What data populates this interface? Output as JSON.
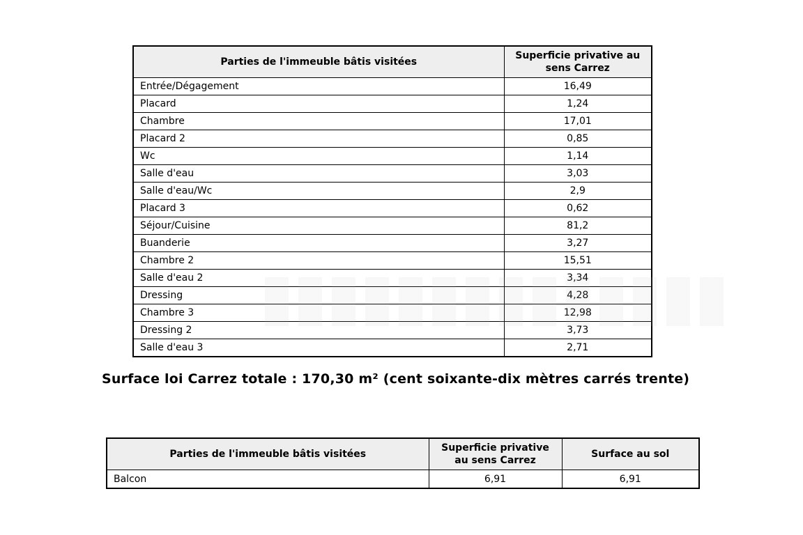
{
  "colors": {
    "page_bg": "#ffffff",
    "header_bg": "#eeeeee",
    "border": "#000000",
    "text": "#000000"
  },
  "table_main": {
    "col_headers": [
      "Parties de l'immeuble bâtis visitées",
      "Superficie privative au sens Carrez"
    ],
    "rows": [
      [
        "Entrée/Dégagement",
        "16,49"
      ],
      [
        "Placard",
        "1,24"
      ],
      [
        "Chambre",
        "17,01"
      ],
      [
        "Placard 2",
        "0,85"
      ],
      [
        "Wc",
        "1,14"
      ],
      [
        "Salle d'eau",
        "3,03"
      ],
      [
        "Salle d'eau/Wc",
        "2,9"
      ],
      [
        "Placard 3",
        "0,62"
      ],
      [
        "Séjour/Cuisine",
        "81,2"
      ],
      [
        "Buanderie",
        "3,27"
      ],
      [
        "Chambre 2",
        "15,51"
      ],
      [
        "Salle d'eau 2",
        "3,34"
      ],
      [
        "Dressing",
        "4,28"
      ],
      [
        "Chambre 3",
        "12,98"
      ],
      [
        "Dressing 2",
        "3,73"
      ],
      [
        "Salle d'eau 3",
        "2,71"
      ]
    ]
  },
  "total_line": "Surface loi Carrez totale : 170,30 m² (cent soixante-dix mètres carrés trente)",
  "table_annex": {
    "col_headers": [
      "Parties de l'immeuble bâtis visitées",
      "Superficie privative au sens Carrez",
      "Surface au sol"
    ],
    "rows": [
      [
        "Balcon",
        "6,91",
        "6,91"
      ]
    ]
  }
}
